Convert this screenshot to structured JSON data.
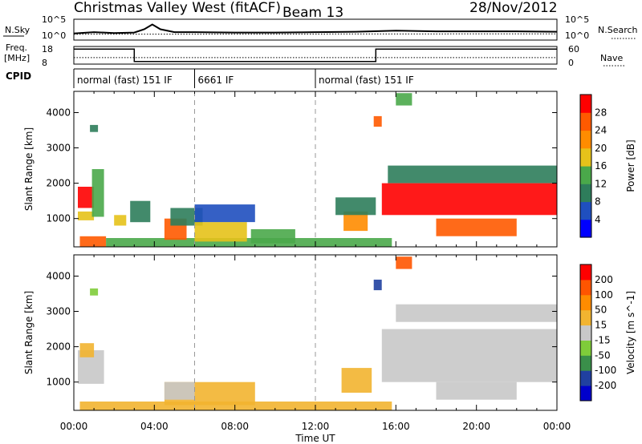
{
  "header": {
    "title": "Christmas Valley West (fitACF)",
    "beam": "Beam 13",
    "date": "28/Nov/2012"
  },
  "noise_panel": {
    "left_label": "N.Sky",
    "right_label": "N.Search",
    "left_ticks": [
      "10^5",
      "10^0"
    ],
    "right_ticks": [
      "10^5",
      "10^0"
    ]
  },
  "freq_panel": {
    "left_label_line1": "Freq.",
    "left_label_line2": "[MHz]",
    "right_label": "Nave",
    "left_ticks": [
      "18",
      "8"
    ],
    "right_ticks": [
      "60",
      "0"
    ]
  },
  "cpid_panel": {
    "label": "CPID",
    "segments": [
      {
        "start_hour": 0,
        "end_hour": 6,
        "text": "normal (fast) 151 IF"
      },
      {
        "start_hour": 6,
        "end_hour": 12,
        "text": "6661 IF"
      },
      {
        "start_hour": 12,
        "end_hour": 24,
        "text": "normal (fast) 151 IF"
      }
    ]
  },
  "colors": {
    "power": [
      "#0000ff",
      "#1f4fbf",
      "#2e7d5b",
      "#4aa84a",
      "#e6c21a",
      "#ff8c00",
      "#ff5a00",
      "#ff0000"
    ],
    "velocity": [
      "#ff0000",
      "#ff5500",
      "#ff8c00",
      "#f2b430",
      "#c8c8c8",
      "#7fcc3a",
      "#3a8f4a",
      "#2040a0",
      "#0000cc"
    ]
  },
  "chart_data": [
    {
      "type": "line",
      "panel": "noise",
      "x_unit": "UT hours",
      "series": [
        {
          "name": "N.Sky",
          "x": [
            0,
            1,
            2,
            3,
            3.5,
            3.9,
            4.3,
            5,
            6,
            8,
            10,
            12,
            14,
            16,
            18,
            20,
            22,
            24
          ],
          "y": [
            0.32,
            0.38,
            0.34,
            0.36,
            0.52,
            0.75,
            0.52,
            0.38,
            0.38,
            0.36,
            0.36,
            0.38,
            0.4,
            0.45,
            0.42,
            0.42,
            0.42,
            0.4
          ]
        },
        {
          "name": "N.Search",
          "x": [
            0,
            24
          ],
          "y": [
            0.28,
            0.3
          ]
        }
      ]
    },
    {
      "type": "line",
      "panel": "frequency",
      "x_unit": "UT hours",
      "series": [
        {
          "name": "Freq.",
          "x": [
            0,
            3,
            3,
            15,
            15,
            24
          ],
          "y": [
            16.5,
            16.5,
            9.5,
            9.5,
            16.5,
            16.5
          ]
        },
        {
          "name": "Nave",
          "x": [
            0,
            24
          ],
          "y": [
            22,
            22
          ]
        }
      ]
    },
    {
      "type": "heatmap",
      "panel": "power",
      "title": "",
      "xlabel": "",
      "ylabel": "Slant Range [km]",
      "xlim": [
        0,
        24
      ],
      "ylim": [
        200,
        4600
      ],
      "x_ticks": [
        "00:00",
        "04:00",
        "08:00",
        "12:00",
        "16:00",
        "20:00",
        "00:00"
      ],
      "y_ticks": [
        1000,
        2000,
        3000,
        4000
      ],
      "colorbar_label": "Power [dB]",
      "colorbar_ticks": [
        4,
        8,
        12,
        16,
        20,
        24,
        28
      ],
      "dashed_hours": [
        6,
        12
      ],
      "regions": [
        {
          "x0": 0.2,
          "x1": 1.0,
          "y0": 1300,
          "y1": 1900,
          "level": 7
        },
        {
          "x0": 0.2,
          "x1": 1.0,
          "y0": 950,
          "y1": 1200,
          "level": 4
        },
        {
          "x0": 0.9,
          "x1": 1.5,
          "y0": 1050,
          "y1": 2400,
          "level": 3
        },
        {
          "x0": 0.8,
          "x1": 1.2,
          "y0": 3450,
          "y1": 3650,
          "level": 2
        },
        {
          "x0": 0.3,
          "x1": 1.6,
          "y0": 200,
          "y1": 500,
          "level": 6
        },
        {
          "x0": 1.6,
          "x1": 15.8,
          "y0": 200,
          "y1": 450,
          "level": 3
        },
        {
          "x0": 2.0,
          "x1": 2.6,
          "y0": 800,
          "y1": 1100,
          "level": 4
        },
        {
          "x0": 2.8,
          "x1": 3.8,
          "y0": 900,
          "y1": 1500,
          "level": 2
        },
        {
          "x0": 4.5,
          "x1": 5.6,
          "y0": 400,
          "y1": 1000,
          "level": 6
        },
        {
          "x0": 4.8,
          "x1": 6.4,
          "y0": 800,
          "y1": 1300,
          "level": 2
        },
        {
          "x0": 6.0,
          "x1": 8.6,
          "y0": 350,
          "y1": 900,
          "level": 4
        },
        {
          "x0": 6.0,
          "x1": 9.0,
          "y0": 900,
          "y1": 1400,
          "level": 1
        },
        {
          "x0": 8.8,
          "x1": 11.0,
          "y0": 300,
          "y1": 700,
          "level": 3
        },
        {
          "x0": 13.4,
          "x1": 14.6,
          "y0": 650,
          "y1": 1200,
          "level": 5
        },
        {
          "x0": 13.0,
          "x1": 15.0,
          "y0": 1100,
          "y1": 1600,
          "level": 2
        },
        {
          "x0": 14.9,
          "x1": 15.3,
          "y0": 3600,
          "y1": 3900,
          "level": 6
        },
        {
          "x0": 15.6,
          "x1": 24.0,
          "y0": 2000,
          "y1": 2500,
          "level": 2
        },
        {
          "x0": 15.3,
          "x1": 24.0,
          "y0": 1100,
          "y1": 2000,
          "level": 7
        },
        {
          "x0": 18.0,
          "x1": 22.0,
          "y0": 500,
          "y1": 1000,
          "level": 6
        },
        {
          "x0": 16.0,
          "x1": 16.8,
          "y0": 4200,
          "y1": 4550,
          "level": 3
        }
      ]
    },
    {
      "type": "heatmap",
      "panel": "velocity",
      "title": "",
      "xlabel": "Time UT",
      "ylabel": "Slant Range [km]",
      "xlim": [
        0,
        24
      ],
      "ylim": [
        200,
        4600
      ],
      "x_ticks": [
        "00:00",
        "04:00",
        "08:00",
        "12:00",
        "16:00",
        "20:00",
        "00:00"
      ],
      "y_ticks": [
        1000,
        2000,
        3000,
        4000
      ],
      "colorbar_label": "Velocity [m s^-1]",
      "colorbar_ticks": [
        200,
        100,
        50,
        15,
        -15,
        -50,
        -100,
        -200
      ],
      "dashed_hours": [
        6,
        12
      ],
      "regions": [
        {
          "x0": 0.2,
          "x1": 1.5,
          "y0": 950,
          "y1": 1900,
          "level": 4
        },
        {
          "x0": 0.3,
          "x1": 1.0,
          "y0": 1700,
          "y1": 2100,
          "level": 3
        },
        {
          "x0": 0.8,
          "x1": 1.2,
          "y0": 3450,
          "y1": 3650,
          "level": 5
        },
        {
          "x0": 0.3,
          "x1": 15.8,
          "y0": 200,
          "y1": 450,
          "level": 3
        },
        {
          "x0": 4.5,
          "x1": 9.0,
          "y0": 350,
          "y1": 1000,
          "level": 3
        },
        {
          "x0": 4.5,
          "x1": 6.0,
          "y0": 500,
          "y1": 1000,
          "level": 4
        },
        {
          "x0": 13.3,
          "x1": 14.8,
          "y0": 700,
          "y1": 1400,
          "level": 3
        },
        {
          "x0": 14.9,
          "x1": 15.3,
          "y0": 3600,
          "y1": 3900,
          "level": 7
        },
        {
          "x0": 15.3,
          "x1": 24.0,
          "y0": 1000,
          "y1": 2500,
          "level": 4
        },
        {
          "x0": 18.0,
          "x1": 22.0,
          "y0": 500,
          "y1": 1000,
          "level": 4
        },
        {
          "x0": 16.0,
          "x1": 16.8,
          "y0": 4200,
          "y1": 4550,
          "level": 1
        },
        {
          "x0": 16.0,
          "x1": 24.0,
          "y0": 2700,
          "y1": 3200,
          "level": 4
        }
      ]
    }
  ]
}
